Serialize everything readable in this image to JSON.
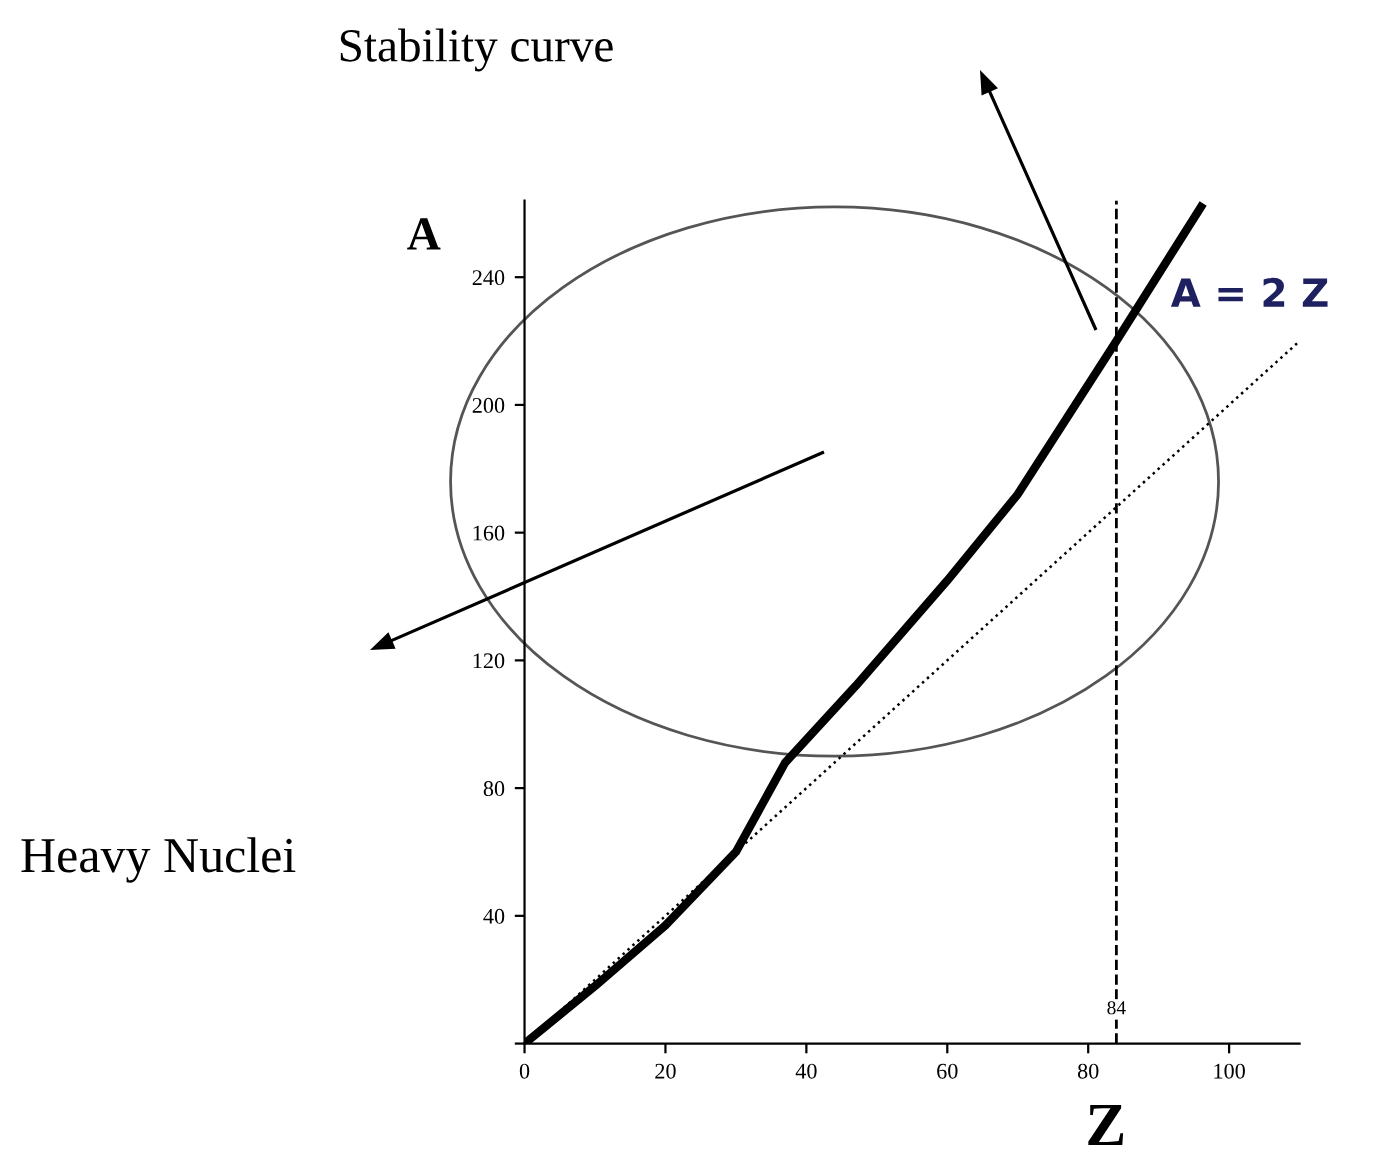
{
  "chart_data": {
    "type": "line",
    "xlabel": "Z",
    "ylabel": "A",
    "x": [
      0,
      10,
      20,
      30,
      37,
      47,
      60,
      70,
      84,
      96
    ],
    "series": [
      {
        "color": "#000000",
        "values": [
          0,
          18,
          37,
          60,
          88,
          112,
          145,
          172,
          220,
          262
        ]
      },
      {
        "color": "#000000",
        "x": [
          0,
          110
        ],
        "values": [
          0,
          220
        ],
        "line_style": "dotted"
      }
    ],
    "xlim": [
      0,
      110
    ],
    "ylim": [
      0,
      264
    ],
    "xticks": [
      0,
      20,
      40,
      60,
      80,
      100
    ],
    "yticks": [
      {
        "value": 0,
        "label": null
      },
      40,
      80,
      120,
      160,
      200,
      240
    ],
    "ref_lines": [
      {
        "axis": "x",
        "value": 84,
        "label": "84",
        "line_style": "dashed",
        "color": "#000000"
      }
    ],
    "annotations": [
      "Stability curve",
      "Heavy Nuclei",
      "A = 2 Z"
    ],
    "grid": false
  }
}
